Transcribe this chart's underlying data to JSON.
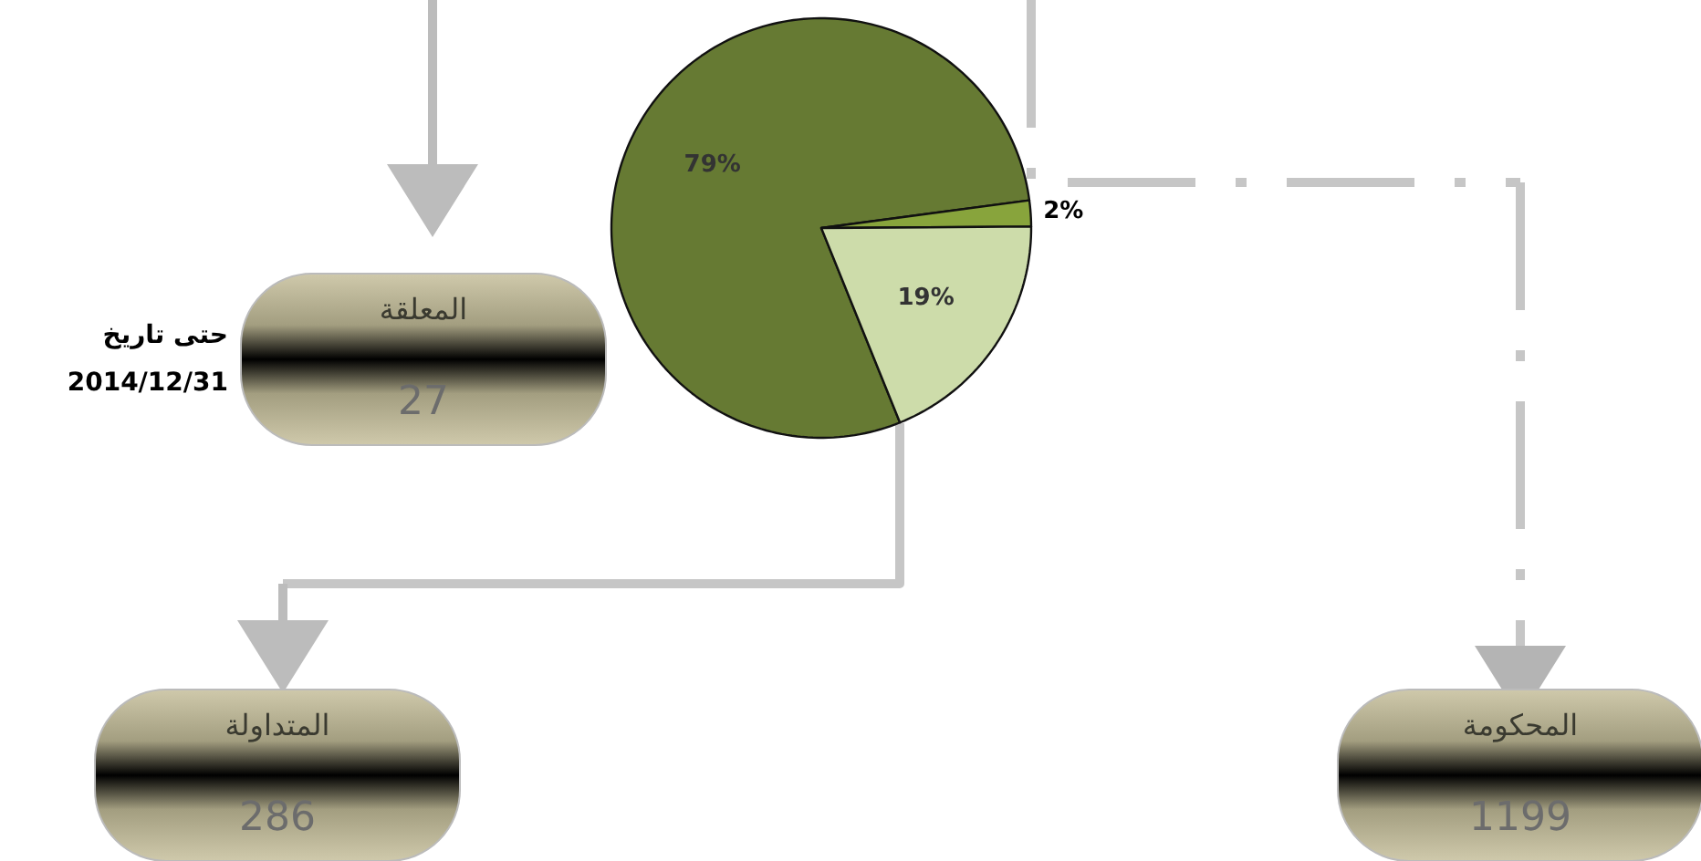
{
  "chart_data": {
    "type": "pie",
    "categories": [
      null,
      null,
      null
    ],
    "values": [
      79,
      2,
      19
    ],
    "colors": [
      "#667a33",
      "#88a43c",
      "#cddcaa"
    ],
    "value_labels": [
      "79%",
      "2%",
      "19%"
    ],
    "annotations": [
      "حتى تاريخ",
      "2014/12/31",
      "المحكومة",
      "1199",
      "المعلقة",
      "27",
      "المتداولة",
      "286"
    ],
    "legend": false
  }
}
